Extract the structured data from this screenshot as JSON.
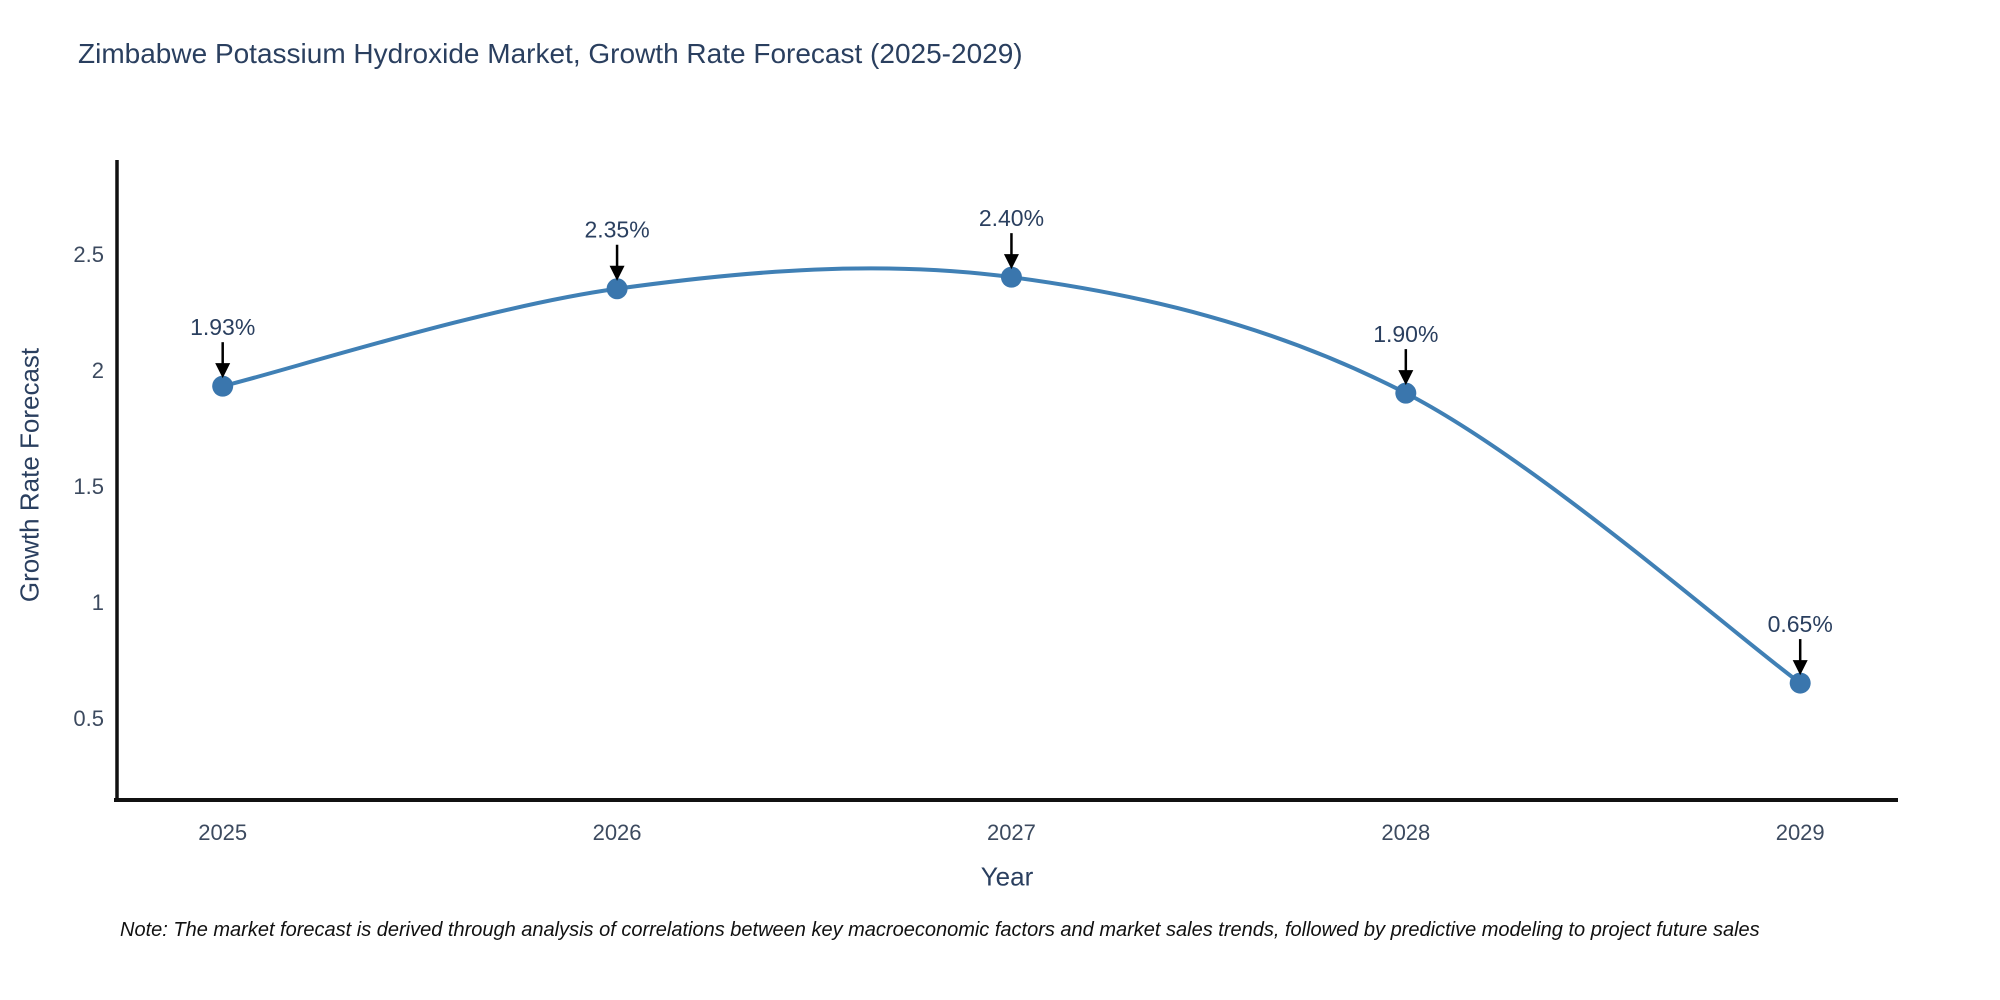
{
  "chart_data": {
    "type": "line",
    "title": "Zimbabwe Potassium Hydroxide Market, Growth Rate Forecast (2025-2029)",
    "xlabel": "Year",
    "ylabel": "Growth Rate Forecast",
    "x": [
      2025,
      2026,
      2027,
      2028,
      2029
    ],
    "values": [
      1.93,
      2.35,
      2.4,
      1.9,
      0.65
    ],
    "point_labels": [
      "1.93%",
      "2.35%",
      "2.40%",
      "1.90%",
      "0.65%"
    ],
    "x_tick_labels": [
      "2025",
      "2026",
      "2027",
      "2028",
      "2029"
    ],
    "y_ticks": [
      2.5,
      2.0,
      1.5,
      1.0,
      0.5
    ],
    "y_tick_labels": [
      "2.5",
      "2",
      "1.5",
      "1",
      "0.5"
    ],
    "xlim": [
      2024.732,
      2029.248
    ],
    "ylim": [
      0.146,
      2.905
    ],
    "grid": false,
    "legend_position": "none",
    "line_shape": "spline",
    "colors": {
      "line": "#4080b5",
      "marker": "#3a76ad",
      "axis": "#111111",
      "text": "#2a3f5f",
      "tick_text": "#3c4a5f",
      "arrow": "#000000",
      "background": "#ffffff"
    }
  },
  "note": "Note: The market forecast is derived through analysis of correlations between key macroeconomic factors and market sales trends, followed by predictive modeling to project future sales"
}
